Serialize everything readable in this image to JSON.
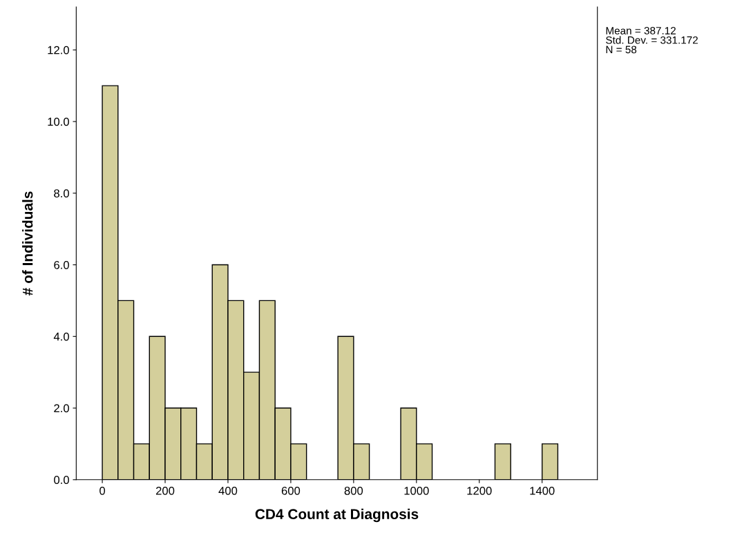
{
  "chart_data": {
    "type": "histogram",
    "xlabel": "CD4 Count at Diagnosis",
    "ylabel": "# of Individuals",
    "bins": [
      0,
      50,
      100,
      150,
      200,
      250,
      300,
      350,
      400,
      450,
      500,
      550,
      600,
      650,
      700,
      750,
      800,
      850,
      900,
      950,
      1000,
      1050,
      1100,
      1150,
      1200,
      1250,
      1300,
      1350,
      1400,
      1450
    ],
    "values": [
      11,
      5,
      1,
      4,
      2,
      2,
      1,
      6,
      5,
      3,
      5,
      2,
      1,
      0,
      0,
      4,
      1,
      0,
      0,
      2,
      1,
      0,
      0,
      0,
      0,
      1,
      0,
      0,
      1
    ],
    "color": "#d4cf9b",
    "xlim": [
      -83,
      1576
    ],
    "xticks": [
      0,
      200,
      400,
      600,
      800,
      1000,
      1200,
      1400
    ],
    "ylim": [
      0,
      13.2
    ],
    "yticks": [
      {
        "value": 0,
        "label": "0.0"
      },
      {
        "value": 2,
        "label": "2.0"
      },
      {
        "value": 4,
        "label": "4.0"
      },
      {
        "value": 6,
        "label": "6.0"
      },
      {
        "value": 8,
        "label": "8.0"
      },
      {
        "value": 10,
        "label": "10.0"
      },
      {
        "value": 12,
        "label": "12.0"
      }
    ],
    "grid": false,
    "legend": false,
    "annotations": [
      "Mean = 387.12\nStd. Dev. = 331.172\nN = 58"
    ]
  }
}
